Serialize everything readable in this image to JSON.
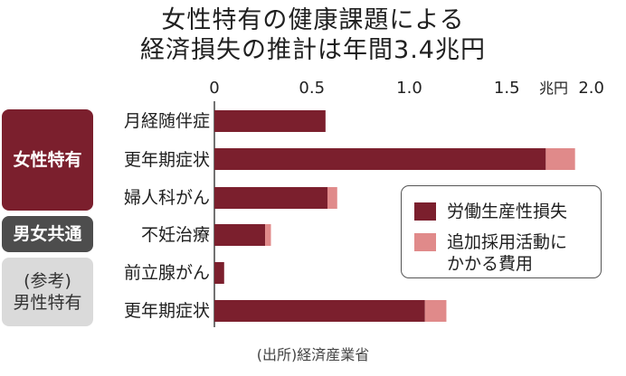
{
  "chart_data": {
    "type": "bar",
    "orientation": "horizontal",
    "stacked": true,
    "title": [
      "女性特有の健康課題による",
      "経済損失の推計は年間3.4兆円"
    ],
    "unit": "兆円",
    "xlim": [
      0,
      2.0
    ],
    "xticks": [
      "0",
      "0.5",
      "1.0",
      "1.5",
      "2.0"
    ],
    "groups": [
      {
        "label": [
          "女性特有"
        ],
        "categories": [
          "月経随伴症",
          "更年期症状",
          "婦人科がん"
        ]
      },
      {
        "label": [
          "男女共通"
        ],
        "categories": [
          "不妊治療"
        ]
      },
      {
        "label": [
          "(参考)",
          "男性特有"
        ],
        "categories": [
          "前立腺がん",
          "更年期症状"
        ]
      }
    ],
    "categories": [
      "月経随伴症",
      "更年期症状",
      "婦人科がん",
      "不妊治療",
      "前立腺がん",
      "更年期症状"
    ],
    "series": [
      {
        "name": "労働生産性損失",
        "color": "#7b1f2d",
        "values": [
          0.57,
          1.7,
          0.58,
          0.26,
          0.05,
          1.08
        ]
      },
      {
        "name": "追加採用活動に\nかかる費用",
        "color": "#e08a8a",
        "values": [
          0.0,
          0.15,
          0.05,
          0.03,
          0.0,
          0.11
        ]
      }
    ],
    "source": "(出所)経済産業省",
    "legend_position": "center-right",
    "grid": false
  }
}
